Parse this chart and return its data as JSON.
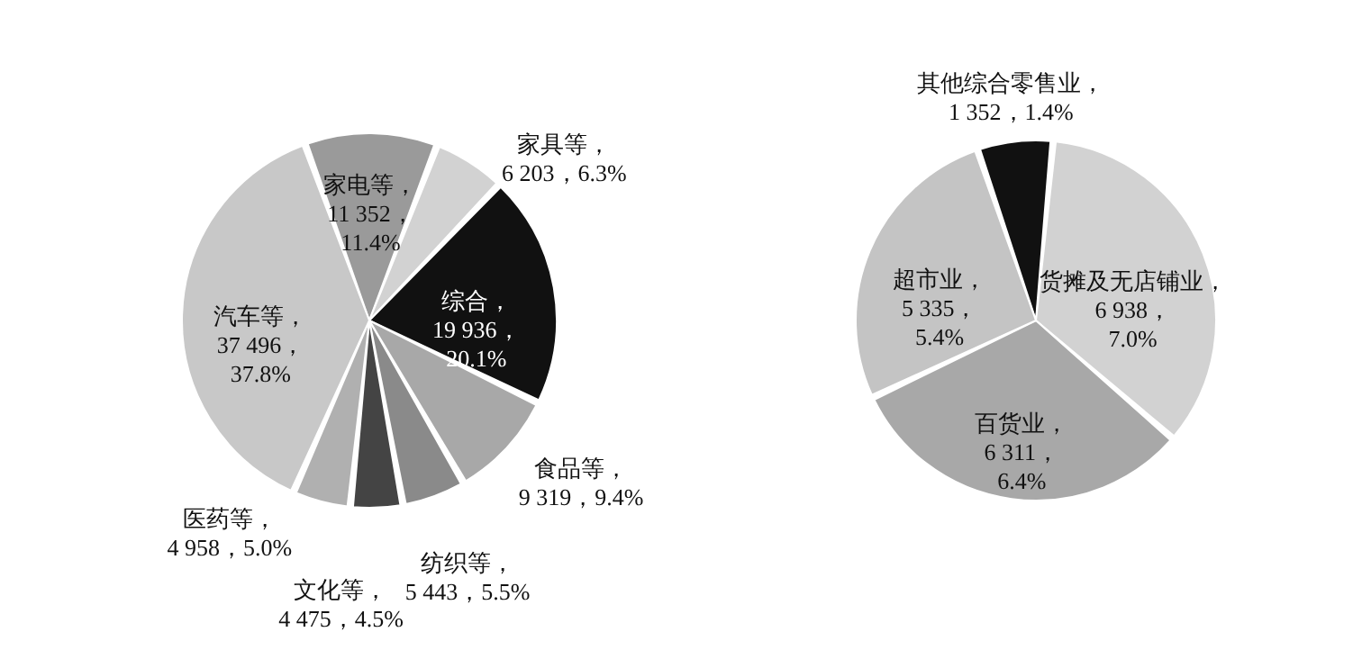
{
  "chart_data": [
    {
      "type": "pie",
      "categories": [
        "家电等",
        "家具等",
        "综合",
        "食品等",
        "纺织等",
        "文化等",
        "医药等",
        "汽车等"
      ],
      "values": [
        11352,
        6203,
        19936,
        9319,
        5443,
        4475,
        4958,
        37496
      ],
      "value_labels": [
        "，11 352，11.4%",
        "，6 203，6.3%",
        "，19 936，20.1%",
        "，9 319，9.4%",
        "，5 443，5.5%",
        "，4 475，4.5%",
        "，4 958，5.0%",
        "，37 496，37.8%"
      ],
      "colors": [
        "#9a9a9a",
        "#d2d2d2",
        "#111111",
        "#a8a8a8",
        "#8a8a8a",
        "#444444",
        "#b0b0b0",
        "#c8c8c8"
      ]
    },
    {
      "type": "pie",
      "categories": [
        "其他综合零售业",
        "货摊及无店铺业",
        "百货业",
        "超市业"
      ],
      "values": [
        1352,
        6938,
        6311,
        5335
      ],
      "value_labels": [
        "，1 352，1.4%",
        "，6 938，7.0%",
        "，6 311，6.4%",
        "，5 335，5.4%"
      ],
      "colors": [
        "#111111",
        "#d2d2d2",
        "#a8a8a8",
        "#c4c4c4"
      ]
    }
  ]
}
